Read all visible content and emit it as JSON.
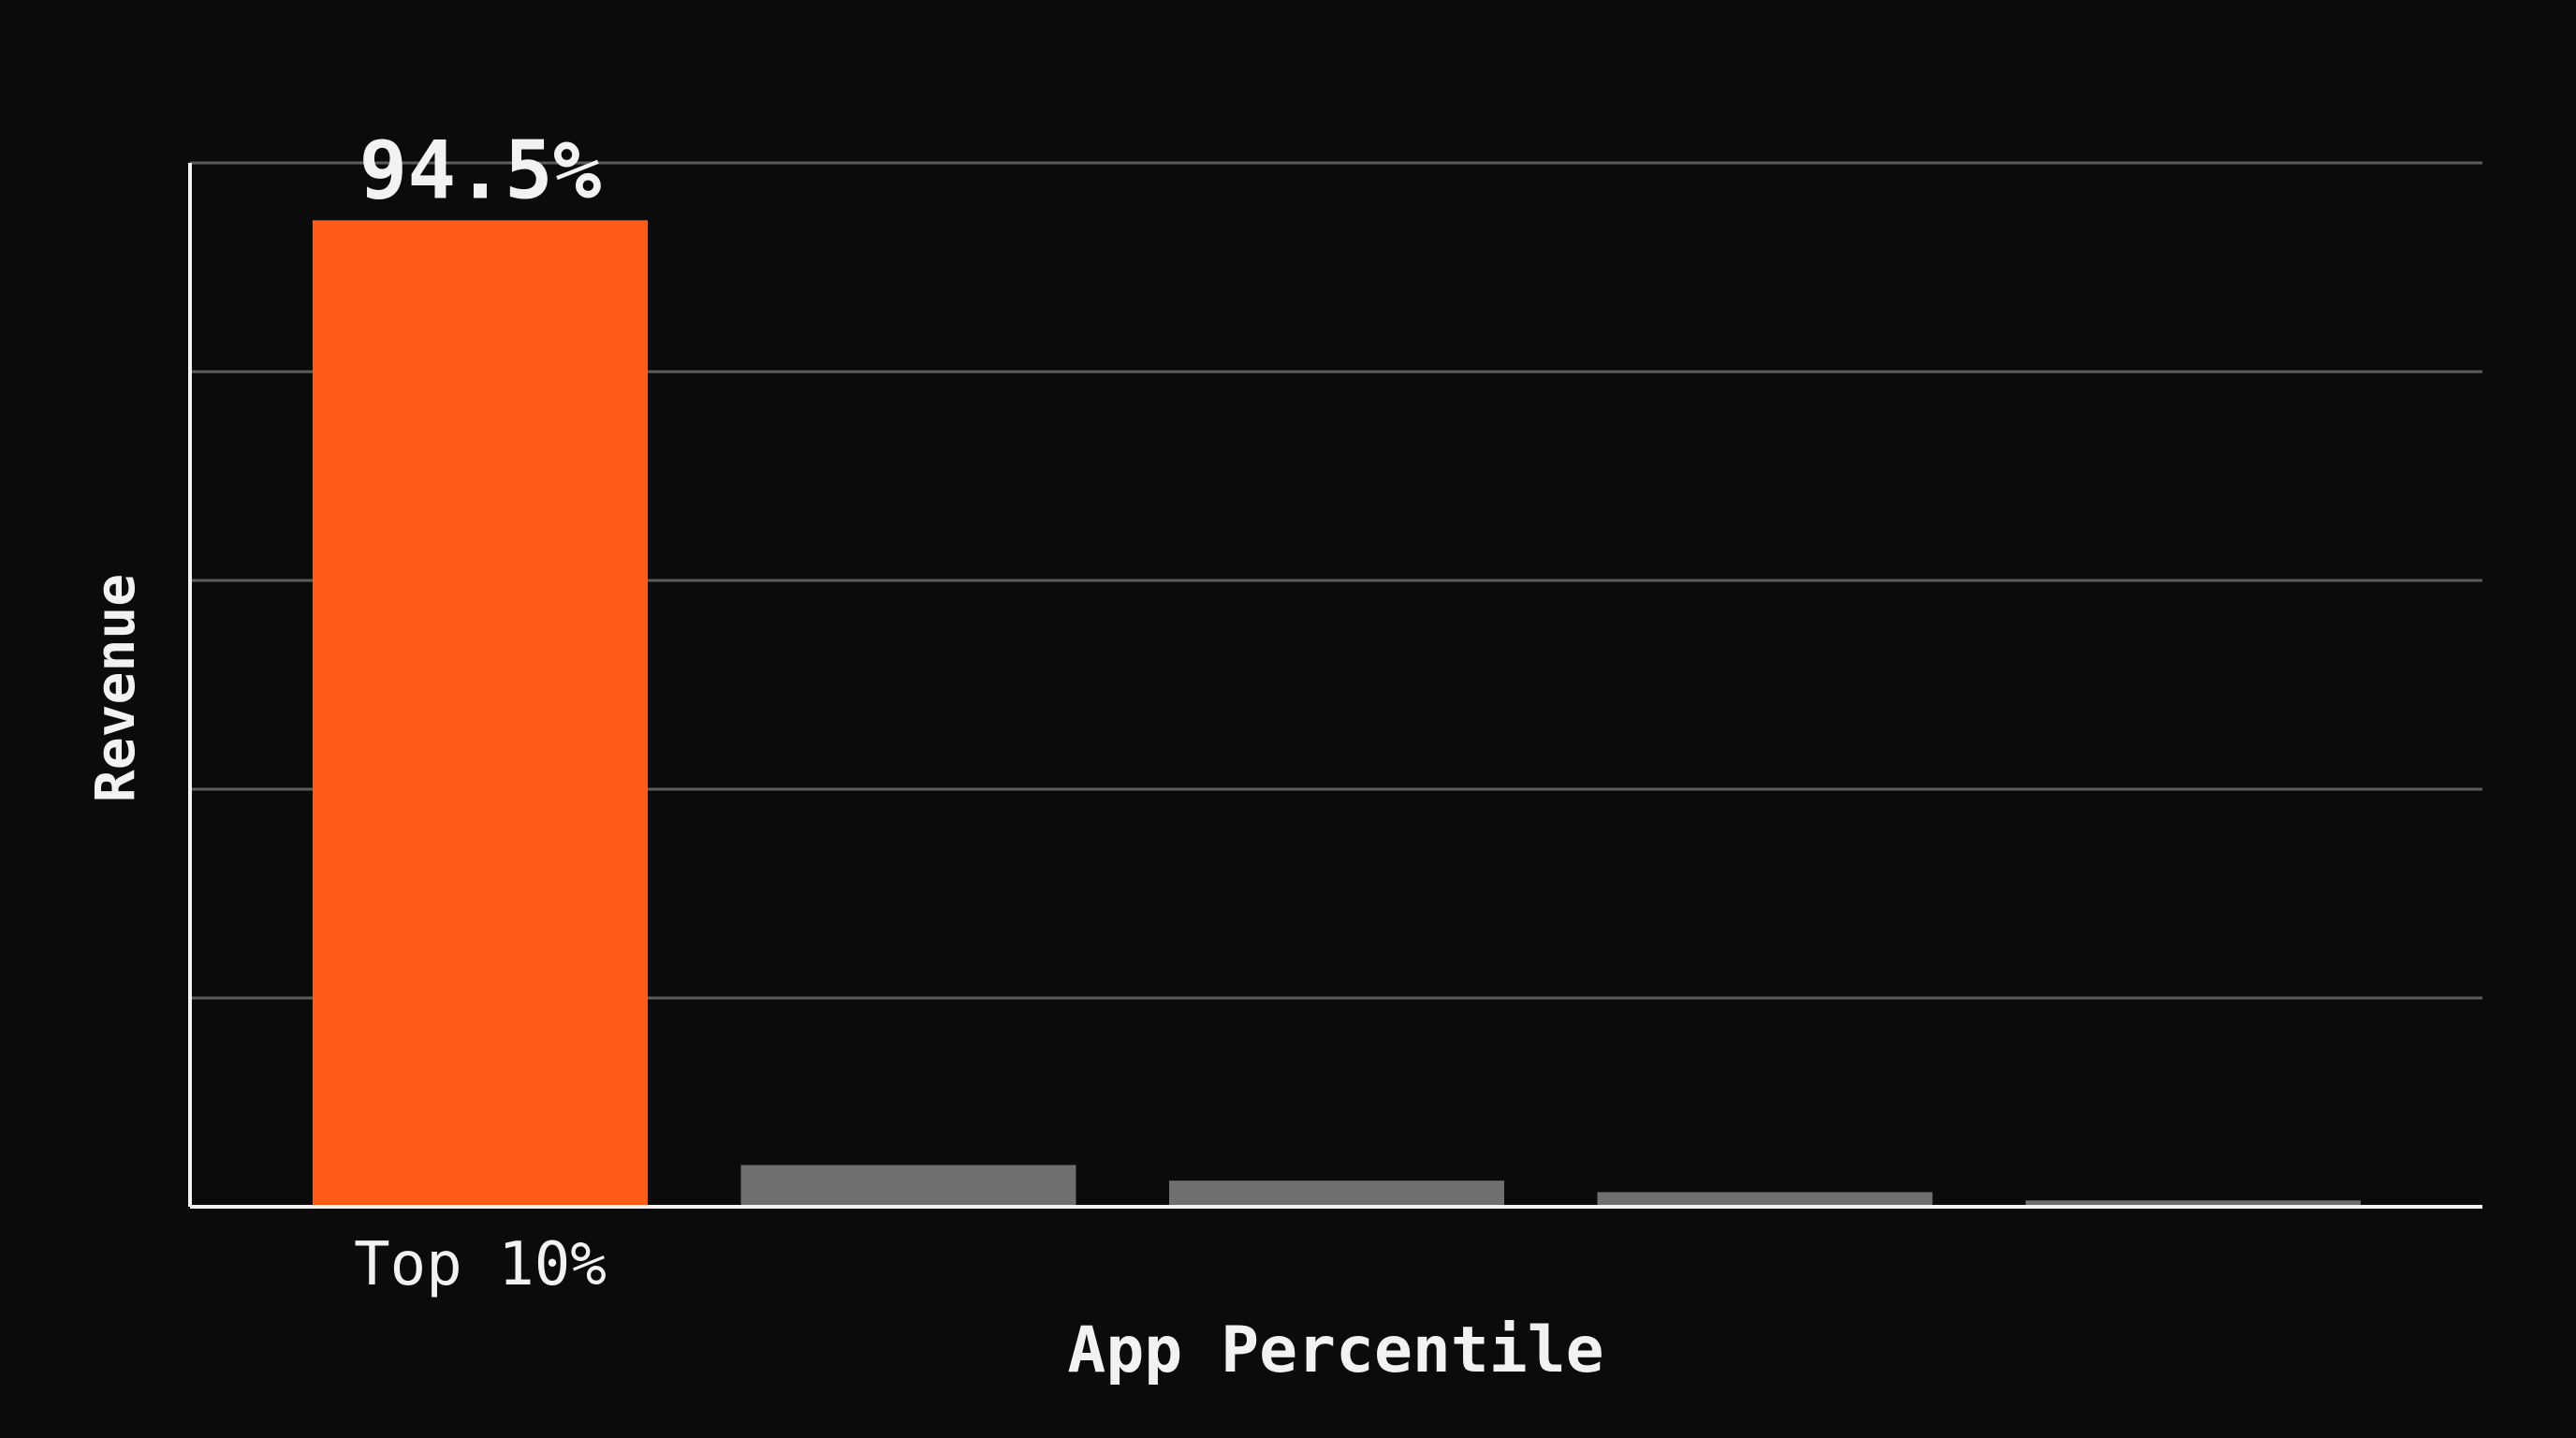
{
  "chart_data": {
    "type": "bar",
    "title": "",
    "xlabel": "App Percentile",
    "ylabel": "Revenue",
    "ylim": [
      0,
      100
    ],
    "grid": true,
    "categories": [
      "Top 10%",
      "",
      "",
      "",
      ""
    ],
    "values": [
      94.5,
      4.0,
      2.5,
      1.4,
      0.6
    ],
    "data_labels": [
      "94.5%",
      "",
      "",
      "",
      ""
    ],
    "colors": {
      "background": "#0b0b0b",
      "highlight_bar": "#ff5c1a",
      "other_bars": "#6f6f6f",
      "grid": "#5c5c5c",
      "axis": "#f2f2f2",
      "text": "#f2f2f2"
    }
  }
}
